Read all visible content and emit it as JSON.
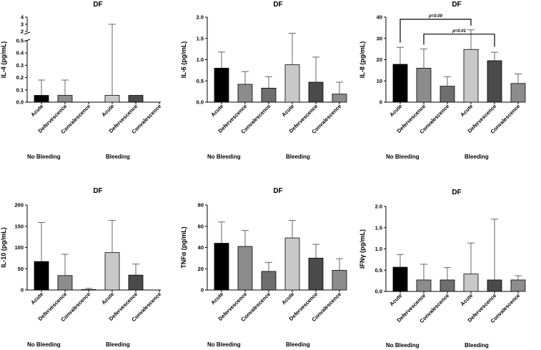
{
  "figure": {
    "colors": {
      "black": "#000000",
      "mid_gray": "#8c8c8c",
      "dark_gray": "#6e6e6e",
      "light_gray": "#c8c8c8",
      "darker_gray": "#4a4a4a",
      "axis": "#000000"
    }
  },
  "chart_data": [
    {
      "type": "bar",
      "title": "DF",
      "ylabel": "IL-4 (pg/mL)",
      "xlabel": "",
      "axis_break": true,
      "ylim_lower": [
        0,
        0.5
      ],
      "ylim_upper": [
        2,
        4
      ],
      "y_ticks_lower": [
        "0.0",
        "0.1",
        "0.2",
        "0.3",
        "0.4",
        "0.5"
      ],
      "y_ticks_upper": [
        "2",
        "3",
        "4"
      ],
      "categories": [
        "Acute",
        "Defervescence",
        "Convalescence",
        "Acute",
        "Defervescence",
        "Convalescence"
      ],
      "groups": [
        "No  Bleeding",
        "Bleeding"
      ],
      "values": [
        0.055,
        0.055,
        0,
        0.055,
        0.055,
        0
      ],
      "errors": [
        0.125,
        0.125,
        0,
        2.95,
        0,
        0
      ],
      "bar_colors": [
        "#000000",
        "#8c8c8c",
        "#6e6e6e",
        "#c8c8c8",
        "#4a4a4a",
        "#8c8c8c"
      ],
      "significance": []
    },
    {
      "type": "bar",
      "title": "DF",
      "ylabel": "IL-6 (pg/mL)",
      "xlabel": "",
      "ylim": [
        0,
        2.0
      ],
      "y_ticks": [
        "0.0",
        "0.5",
        "1.0",
        "1.5",
        "2.0"
      ],
      "categories": [
        "Acute",
        "Defervescence",
        "Convalescence",
        "Acute",
        "Defervescence",
        "Convalescence"
      ],
      "groups": [
        "No  Bleeding",
        "Bleeding"
      ],
      "values": [
        0.8,
        0.42,
        0.33,
        0.88,
        0.47,
        0.19
      ],
      "errors": [
        0.38,
        0.3,
        0.27,
        0.74,
        0.59,
        0.28
      ],
      "bar_colors": [
        "#000000",
        "#8c8c8c",
        "#6e6e6e",
        "#c8c8c8",
        "#4a4a4a",
        "#8c8c8c"
      ],
      "significance": []
    },
    {
      "type": "bar",
      "title": "DF",
      "ylabel": "IL-8 (pg/mL)",
      "xlabel": "",
      "ylim": [
        0,
        40
      ],
      "y_ticks": [
        "0",
        "10",
        "20",
        "30",
        "40"
      ],
      "categories": [
        "Acute",
        "Defervescence",
        "Convalescence",
        "Acute",
        "Defervescence",
        "Convalescence"
      ],
      "groups": [
        "No  Bleeding",
        "Bleeding"
      ],
      "values": [
        17.8,
        16,
        7.5,
        24.8,
        19.5,
        8.8
      ],
      "errors": [
        8,
        9,
        4.5,
        9.2,
        4,
        4.5
      ],
      "bar_colors": [
        "#000000",
        "#8c8c8c",
        "#6e6e6e",
        "#c8c8c8",
        "#4a4a4a",
        "#8c8c8c"
      ],
      "significance": [
        {
          "label": "p=0.00",
          "from": 0,
          "to": 3,
          "level": 39,
          "drop_from": 28,
          "drop_to": 36
        },
        {
          "label": "p=0.01",
          "from": 1,
          "to": 4,
          "level": 32,
          "drop_from": 27,
          "drop_to": 26
        }
      ]
    },
    {
      "type": "bar",
      "title": "DF",
      "ylabel": "IL-10 (pg/mL)",
      "xlabel": "",
      "ylim": [
        0,
        200
      ],
      "y_ticks": [
        "0",
        "50",
        "100",
        "150",
        "200"
      ],
      "categories": [
        "Acute",
        "Defervescence",
        "Convalescence",
        "Acute",
        "Defervescence",
        "Convalescence"
      ],
      "groups": [
        "No  Bleeding",
        "Bleeding"
      ],
      "values": [
        67,
        34,
        1,
        88,
        35,
        0
      ],
      "errors": [
        92,
        50,
        3,
        76,
        26,
        0
      ],
      "bar_colors": [
        "#000000",
        "#8c8c8c",
        "#6e6e6e",
        "#c8c8c8",
        "#4a4a4a",
        "#8c8c8c"
      ],
      "significance": []
    },
    {
      "type": "bar",
      "title": "DF",
      "ylabel": "TNFα (pg/mL)",
      "xlabel": "",
      "ylim": [
        0,
        80
      ],
      "y_ticks": [
        "0",
        "20",
        "40",
        "60",
        "80"
      ],
      "categories": [
        "Acute",
        "Defervescence",
        "Convalescence",
        "Acute",
        "Defervescence",
        "Convalescence"
      ],
      "groups": [
        "No  Bleeding",
        "Bleeding"
      ],
      "values": [
        44,
        41,
        17.5,
        49,
        30,
        18.5
      ],
      "errors": [
        20,
        15,
        8.5,
        16.5,
        13,
        11
      ],
      "bar_colors": [
        "#000000",
        "#8c8c8c",
        "#6e6e6e",
        "#c8c8c8",
        "#4a4a4a",
        "#8c8c8c"
      ],
      "significance": []
    },
    {
      "type": "bar",
      "title": "DF",
      "ylabel": "IFNγ (pg/mL)",
      "xlabel": "",
      "ylim": [
        0,
        2.0
      ],
      "y_ticks": [
        "0.0",
        "0.5",
        "1.0",
        "1.5",
        "2.0"
      ],
      "categories": [
        "Acute",
        "Defervescence",
        "Convalescence",
        "Acute",
        "Defervescence",
        "Convalescence"
      ],
      "groups": [
        "No  Bleeding",
        "Bleeding"
      ],
      "values": [
        0.57,
        0.27,
        0.27,
        0.41,
        0.27,
        0.27
      ],
      "errors": [
        0.3,
        0.37,
        0.29,
        0.73,
        1.43,
        0.1
      ],
      "bar_colors": [
        "#000000",
        "#8c8c8c",
        "#6e6e6e",
        "#c8c8c8",
        "#4a4a4a",
        "#8c8c8c"
      ],
      "significance": []
    }
  ]
}
